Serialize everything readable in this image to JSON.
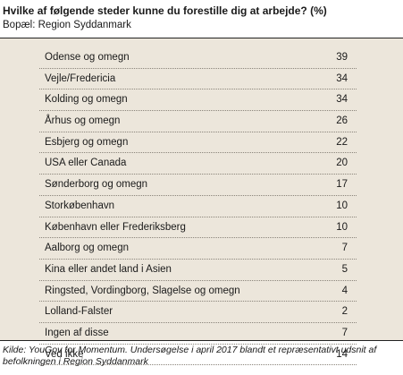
{
  "title": "Hvilke af følgende steder kunne du forestille dig at arbejde? (%)",
  "subtitle": "Bopæl: Region Syddanmark",
  "source": "Kilde: YouGov for Momentum. Undersøgelse i april 2017 blandt et repræsentativt udsnit af befolkningen i Region Syddanmark",
  "chart_data": {
    "type": "table",
    "title": "Hvilke af følgende steder kunne du forestille dig at arbejde? (%)",
    "subtitle": "Bopæl: Region Syddanmark",
    "categories": [
      "Odense og omegn",
      "Vejle/Fredericia",
      "Kolding og omegn",
      "Århus og omegn",
      "Esbjerg og omegn",
      "USA eller Canada",
      "Sønderborg og omegn",
      "Storkøbenhavn",
      "København eller Frederiksberg",
      "Aalborg og omegn",
      "Kina eller andet land i Asien",
      "Ringsted, Vordingborg, Slagelse og omegn",
      "Lolland-Falster",
      "Ingen af disse",
      "Ved ikke"
    ],
    "values": [
      39,
      34,
      34,
      26,
      22,
      20,
      17,
      10,
      10,
      7,
      5,
      4,
      2,
      7,
      14
    ]
  }
}
